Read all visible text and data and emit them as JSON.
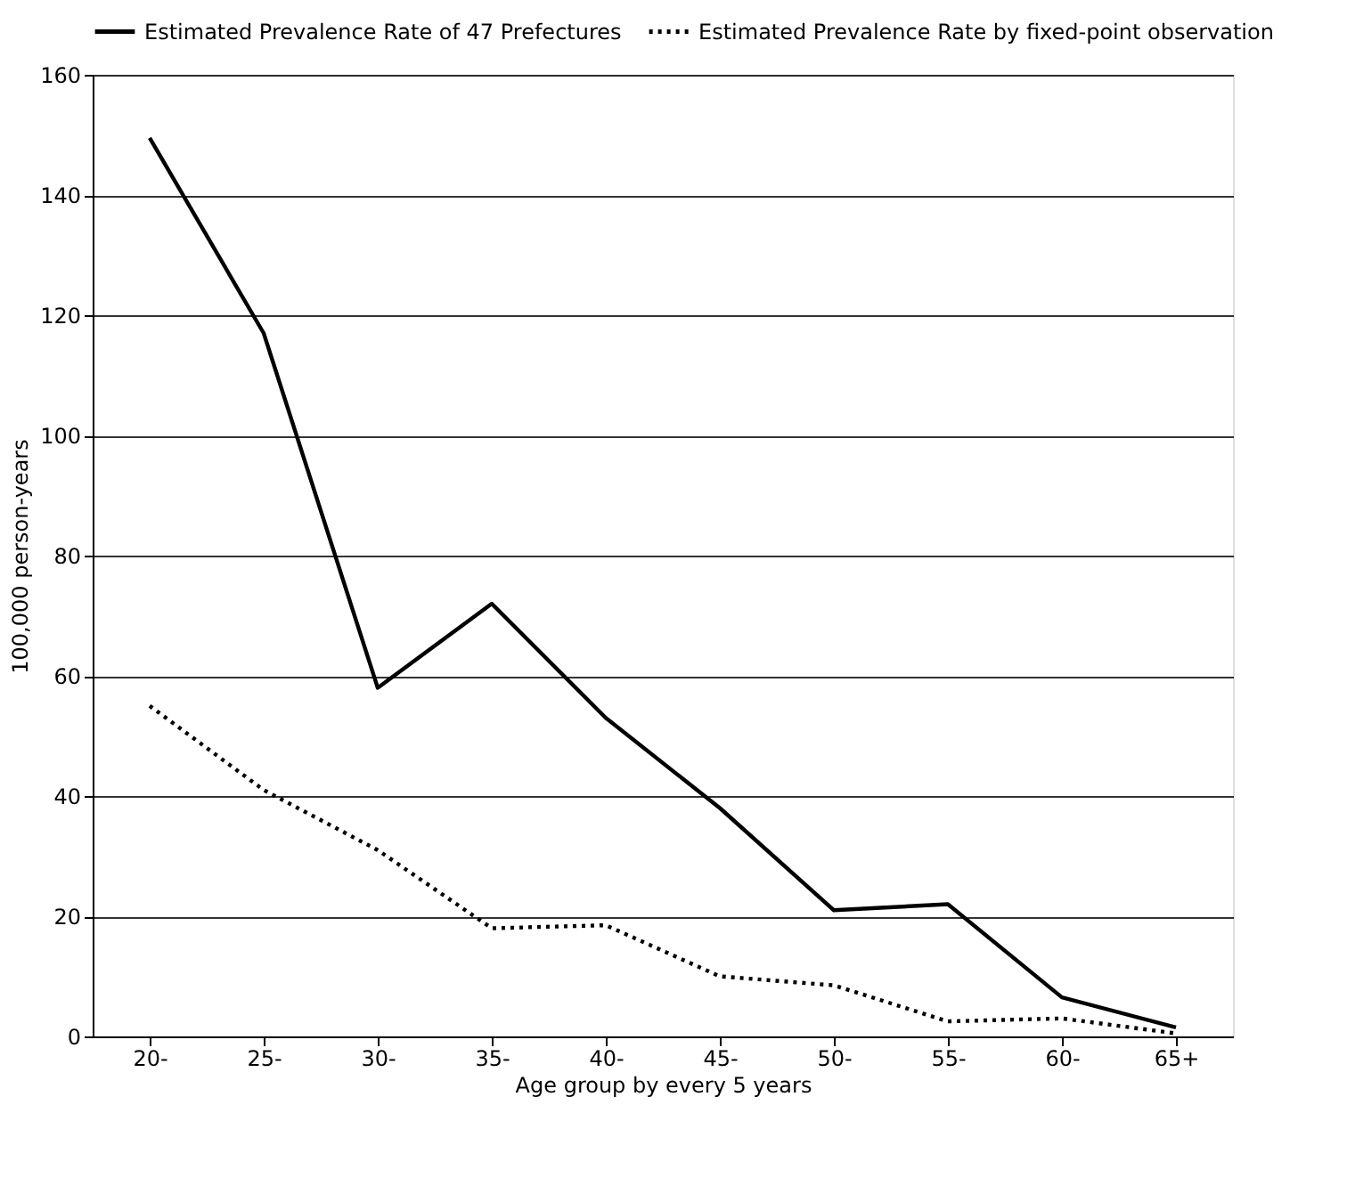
{
  "chart_data": {
    "type": "line",
    "xlabel": "Age group by every 5 years",
    "ylabel": "100,000 person-years",
    "categories": [
      "20-",
      "25-",
      "30-",
      "35-",
      "40-",
      "45-",
      "50-",
      "55-",
      "60-",
      "65+"
    ],
    "series": [
      {
        "name": "Estimated Prevalence Rate of 47 Prefectures",
        "color": "#000000",
        "line_style": "solid",
        "values": [
          149.5,
          117,
          58,
          72,
          53,
          38,
          21,
          22,
          6.5,
          1.5
        ]
      },
      {
        "name": "Estimated Prevalence Rate by fixed-point observation",
        "color": "#000000",
        "line_style": "dotted",
        "values": [
          55,
          41,
          31,
          18,
          18.5,
          10,
          8.5,
          2.5,
          3,
          0.5
        ]
      }
    ],
    "ylim": [
      0,
      160
    ],
    "yticks": [
      0,
      20,
      40,
      60,
      80,
      100,
      120,
      140,
      160
    ],
    "grid": "y",
    "legend": "top",
    "marker": "none"
  }
}
